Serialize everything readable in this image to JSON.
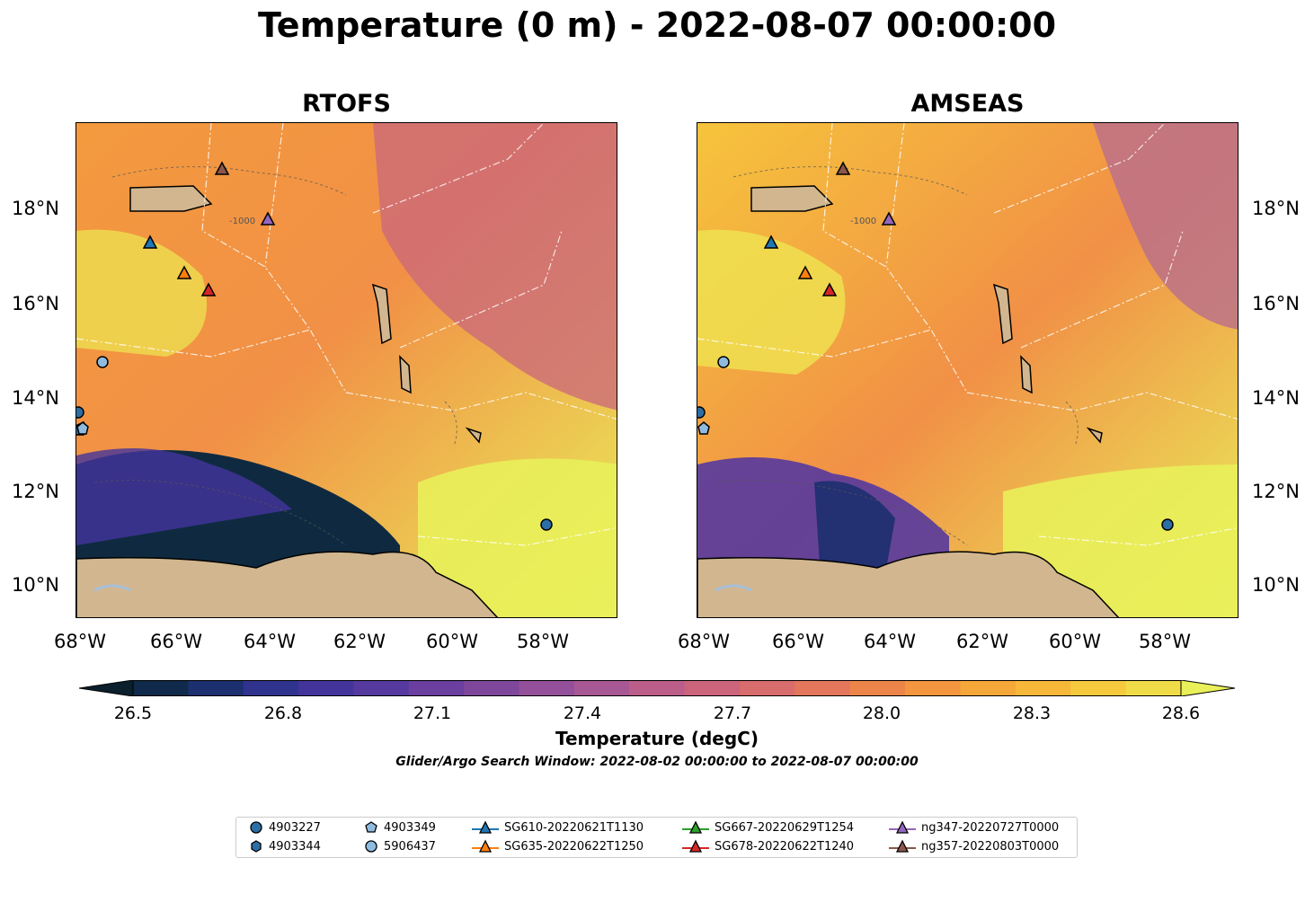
{
  "title": "Temperature (0 m) - 2022-08-07 00:00:00",
  "panels": [
    {
      "title": "RTOFS"
    },
    {
      "title": "AMSEAS"
    }
  ],
  "lon_ticks": [
    "68°W",
    "66°W",
    "64°W",
    "62°W",
    "60°W",
    "58°W"
  ],
  "lat_ticks": [
    "18°N",
    "16°N",
    "14°N",
    "12°N",
    "10°N"
  ],
  "contour_label": "-1000",
  "colorbar": {
    "label": "Temperature (degC)",
    "ticks": [
      "26.5",
      "26.8",
      "27.1",
      "27.4",
      "27.7",
      "28.0",
      "28.3",
      "28.6"
    ],
    "range": [
      26.5,
      28.6
    ],
    "colors": [
      "#0b1f2d",
      "#0f2a4a",
      "#1c2f6e",
      "#2f338d",
      "#43349c",
      "#55399f",
      "#6a3f9f",
      "#7e479c",
      "#94509a",
      "#a85795",
      "#bb5e8a",
      "#cc647c",
      "#d96c6c",
      "#e4775b",
      "#ed854b",
      "#f3963f",
      "#f6a73a",
      "#f7b83a",
      "#f5ca3f",
      "#f0dc48",
      "#e9f05a"
    ]
  },
  "search_window": "Glider/Argo Search Window: 2022-08-02 00:00:00 to 2022-08-07 00:00:00",
  "colors": {
    "land": "#d1b68f",
    "river": "#a7bfd9",
    "ocean_warm": "#f6b43a",
    "ocean_hot": "#e9f05a"
  },
  "legend": [
    {
      "label": "4903227",
      "marker": "circle",
      "color": "#2c6fa6"
    },
    {
      "label": "4903344",
      "marker": "hexagon",
      "color": "#2c6fa6"
    },
    {
      "label": "4903349",
      "marker": "pentagon",
      "color": "#8fbbe0"
    },
    {
      "label": "5906437",
      "marker": "circle",
      "color": "#8fbbe0"
    },
    {
      "label": "SG610-20220621T1130",
      "marker": "triangle",
      "color": "#1f77b4"
    },
    {
      "label": "SG635-20220622T1250",
      "marker": "triangle",
      "color": "#ff7f0e"
    },
    {
      "label": "SG667-20220629T1254",
      "marker": "triangle",
      "color": "#2ca02c"
    },
    {
      "label": "SG678-20220622T1240",
      "marker": "triangle",
      "color": "#d62728"
    },
    {
      "label": "ng347-20220727T0000",
      "marker": "triangle",
      "color": "#9467bd"
    },
    {
      "label": "ng357-20220803T0000",
      "marker": "triangle",
      "color": "#8c564b"
    }
  ]
}
